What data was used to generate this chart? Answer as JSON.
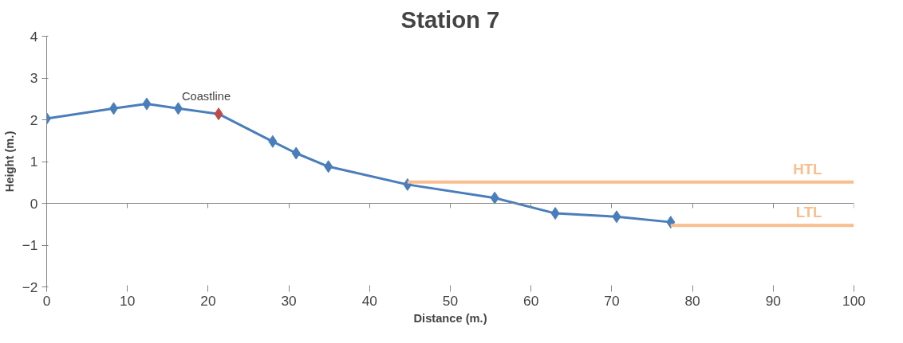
{
  "chart_data": {
    "type": "line",
    "title": "Station 7",
    "xlabel": "Distance (m.)",
    "ylabel": "Height (m.)",
    "xlim": [
      0,
      100
    ],
    "xticks": [
      0,
      10,
      20,
      30,
      40,
      50,
      60,
      70,
      80,
      90,
      100
    ],
    "ylim": [
      -2,
      4
    ],
    "yticks": [
      -2,
      -1,
      0,
      1,
      2,
      3,
      4
    ],
    "legend": false,
    "series": [
      {
        "color": "#4a7ebb",
        "marker": "diamond",
        "x": [
          0,
          8.3,
          12.4,
          16.3,
          21.3,
          28.0,
          30.9,
          34.9,
          44.7,
          55.5,
          63.0,
          70.6,
          77.3
        ],
        "values": [
          2.03,
          2.27,
          2.38,
          2.27,
          2.14,
          1.48,
          1.2,
          0.88,
          0.45,
          0.13,
          -0.24,
          -0.32,
          -0.45
        ],
        "colors": [
          "#4a7ebb",
          "#4a7ebb",
          "#4a7ebb",
          "#4a7ebb",
          "#be4b48",
          "#4a7ebb",
          "#4a7ebb",
          "#4a7ebb",
          "#4a7ebb",
          "#4a7ebb",
          "#4a7ebb",
          "#4a7ebb",
          "#4a7ebb"
        ]
      },
      {
        "name": "HTL",
        "color": "#f9be8e",
        "marker": "none",
        "x": [
          44.7,
          100
        ],
        "values": [
          0.51,
          0.51
        ]
      },
      {
        "name": "LTL",
        "color": "#f9be8e",
        "marker": "none",
        "x": [
          77.3,
          100
        ],
        "values": [
          -0.53,
          -0.53
        ]
      }
    ],
    "annotations": [
      {
        "text": "Coastline",
        "x": 21.3,
        "y": 2.14
      }
    ]
  }
}
